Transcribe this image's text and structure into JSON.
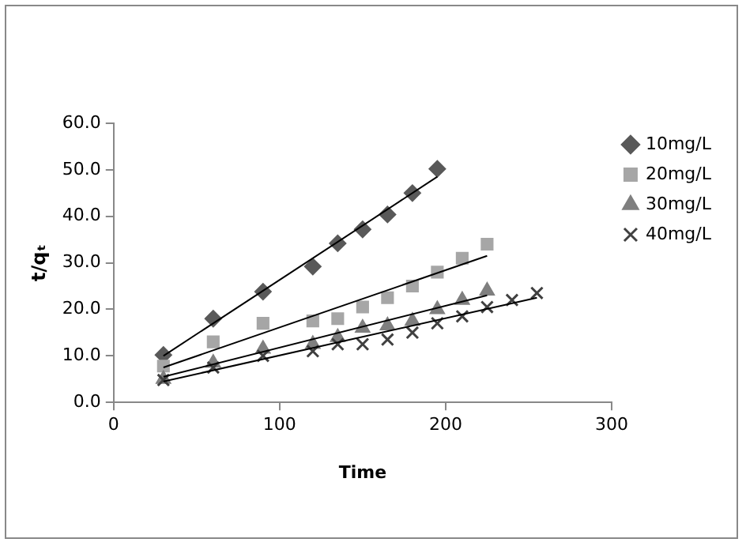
{
  "chart_data": {
    "type": "scatter",
    "xlabel": "Time",
    "ylabel": "t/qₜ",
    "xlim": [
      0,
      300
    ],
    "xticks": [
      0,
      100,
      200,
      300
    ],
    "ylim": [
      0,
      60
    ],
    "yticks": [
      {
        "value": 0,
        "label": "0.0"
      },
      {
        "value": 10,
        "label": "10.0"
      },
      {
        "value": 20,
        "label": "20.0"
      },
      {
        "value": 30,
        "label": "30.0"
      },
      {
        "value": 40,
        "label": "40.0"
      },
      {
        "value": 50,
        "label": "50.0"
      },
      {
        "value": 60,
        "label": "60.0"
      }
    ],
    "grid": false,
    "legend": "right",
    "series": [
      {
        "name": "10mg/L",
        "color": "#595959",
        "marker": "diamond",
        "x": [
          30,
          60,
          90,
          120,
          135,
          150,
          165,
          180,
          195
        ],
        "values": [
          10.2,
          18,
          23.8,
          29.2,
          34.2,
          37.2,
          40.4,
          45,
          50.2
        ]
      },
      {
        "name": "20mg/L",
        "color": "#a6a6a6",
        "marker": "square",
        "x": [
          30,
          60,
          90,
          120,
          135,
          150,
          165,
          180,
          195,
          210,
          225
        ],
        "values": [
          7.8,
          13,
          17,
          17.5,
          18,
          20.5,
          22.5,
          25,
          28,
          31,
          34
        ]
      },
      {
        "name": "30mg/L",
        "color": "#7f7f7f",
        "marker": "triangle",
        "x": [
          30,
          60,
          90,
          120,
          135,
          150,
          165,
          180,
          195,
          210,
          225
        ],
        "values": [
          5,
          8.5,
          11.5,
          12.5,
          14,
          16,
          16.5,
          17.5,
          20,
          22,
          24
        ]
      },
      {
        "name": "40mg/L",
        "color": "#404040",
        "marker": "cross",
        "x": [
          30,
          60,
          90,
          120,
          135,
          150,
          165,
          180,
          195,
          210,
          225,
          240,
          255
        ],
        "values": [
          4.8,
          7.5,
          10,
          11,
          12.5,
          12.5,
          13.5,
          15,
          17,
          18.5,
          20.5,
          22,
          23.5
        ]
      },
      {
        "type": "line",
        "color": "#000000",
        "marker": "none",
        "x": [
          30,
          195
        ],
        "values": [
          10,
          48.5
        ]
      },
      {
        "type": "line",
        "color": "#000000",
        "marker": "none",
        "x": [
          30,
          225
        ],
        "values": [
          7.5,
          31.5
        ]
      },
      {
        "type": "line",
        "color": "#000000",
        "marker": "none",
        "x": [
          30,
          225
        ],
        "values": [
          5.5,
          23
        ]
      },
      {
        "type": "line",
        "color": "#000000",
        "marker": "none",
        "x": [
          30,
          255
        ],
        "values": [
          4.5,
          22.5
        ]
      }
    ]
  }
}
